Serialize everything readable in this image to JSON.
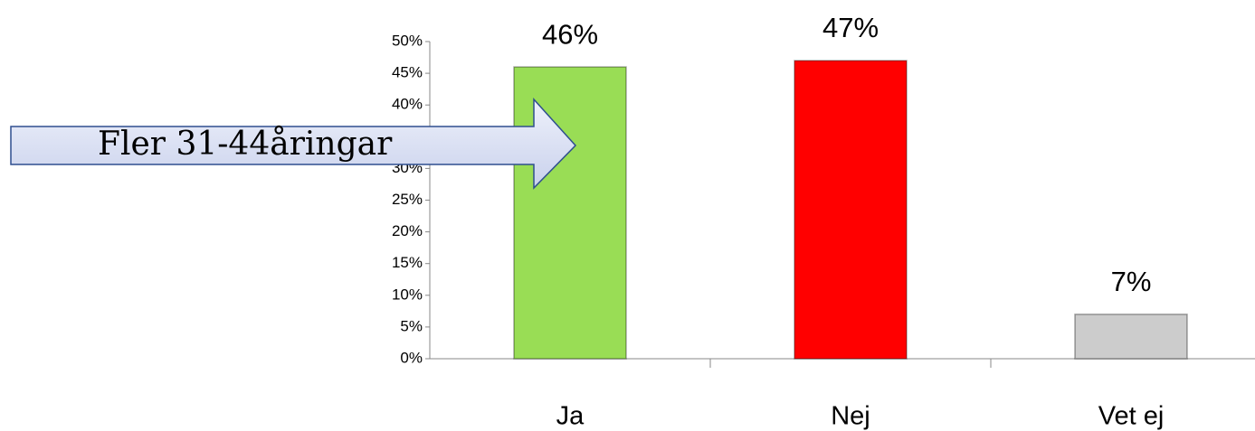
{
  "chart_data": {
    "type": "bar",
    "categories": [
      "Ja",
      "Nej",
      "Vet ej"
    ],
    "values": [
      46,
      47,
      7
    ],
    "value_labels": [
      "46%",
      "47%",
      "7%"
    ],
    "colors": [
      "#99dd55",
      "#ff0000",
      "#cccccc"
    ],
    "ylim": [
      0,
      50
    ],
    "yticks": [
      {
        "value": 0,
        "label": "0%"
      },
      {
        "value": 5,
        "label": "5%"
      },
      {
        "value": 10,
        "label": "10%"
      },
      {
        "value": 15,
        "label": "15%"
      },
      {
        "value": 20,
        "label": "20%"
      },
      {
        "value": 25,
        "label": "25%"
      },
      {
        "value": 30,
        "label": "30%"
      },
      {
        "value": 35,
        "label": "35%"
      },
      {
        "value": 40,
        "label": "40%"
      },
      {
        "value": 45,
        "label": "45%"
      },
      {
        "value": 50,
        "label": "50%"
      }
    ],
    "grid": false,
    "annotation": "Fler 31-44åringar"
  }
}
